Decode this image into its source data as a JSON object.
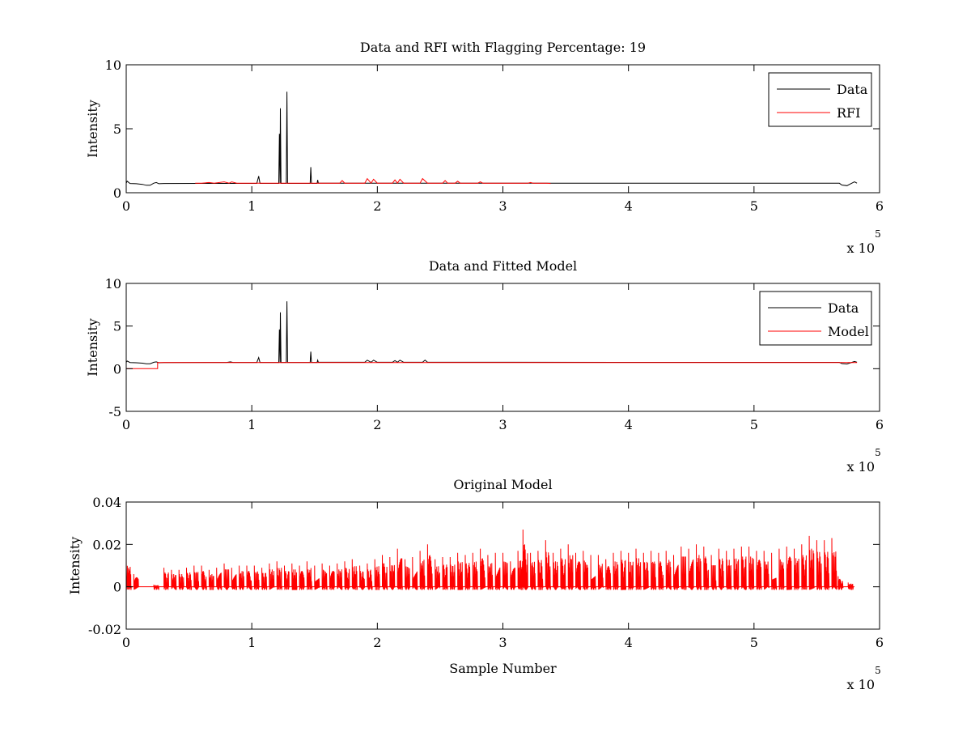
{
  "figure": {
    "background": "#ffffff"
  },
  "chart_data": [
    {
      "type": "line",
      "title": "Data and RFI with Flagging Percentage: 19",
      "xlabel": "",
      "ylabel": "Intensity",
      "xlim": [
        0,
        600000
      ],
      "ylim": [
        0,
        10
      ],
      "xticks": [
        0,
        100000,
        200000,
        300000,
        400000,
        500000,
        600000
      ],
      "xtick_labels": [
        "0",
        "1",
        "2",
        "3",
        "4",
        "5",
        "6"
      ],
      "yticks": [
        0,
        5,
        10
      ],
      "ytick_labels": [
        "0",
        "5",
        "10"
      ],
      "x_exponent": {
        "base": "x 10",
        "power": "5"
      },
      "grid": false,
      "legend": {
        "position": "top-right",
        "entries": [
          "Data",
          "RFI"
        ]
      },
      "series": [
        {
          "name": "Data",
          "color": "#000000",
          "baseline": 0.75,
          "points": [
            [
              0,
              0.75
            ],
            [
              800,
              0.9
            ],
            [
              3000,
              0.72
            ],
            [
              8000,
              0.7
            ],
            [
              13000,
              0.65
            ],
            [
              16000,
              0.58
            ],
            [
              19000,
              0.58
            ],
            [
              22000,
              0.75
            ],
            [
              24000,
              0.8
            ],
            [
              26000,
              0.7
            ],
            [
              30000,
              0.72
            ],
            [
              60000,
              0.73
            ],
            [
              90000,
              0.73
            ],
            [
              104000,
              0.73
            ],
            [
              105500,
              1.3
            ],
            [
              106500,
              0.73
            ],
            [
              121500,
              0.73
            ],
            [
              122000,
              4.6
            ],
            [
              122500,
              0.73
            ],
            [
              122800,
              6.6
            ],
            [
              123300,
              0.73
            ],
            [
              127500,
              0.73
            ],
            [
              128000,
              7.9
            ],
            [
              128500,
              0.73
            ],
            [
              146500,
              0.73
            ],
            [
              147000,
              2.0
            ],
            [
              147500,
              0.73
            ],
            [
              152000,
              0.73
            ],
            [
              152500,
              1.0
            ],
            [
              153000,
              0.75
            ],
            [
              200000,
              0.75
            ],
            [
              300000,
              0.75
            ],
            [
              400000,
              0.74
            ],
            [
              500000,
              0.74
            ],
            [
              568000,
              0.74
            ],
            [
              570000,
              0.6
            ],
            [
              574000,
              0.55
            ],
            [
              577000,
              0.7
            ],
            [
              580000,
              0.85
            ],
            [
              582000,
              0.75
            ]
          ]
        },
        {
          "name": "RFI",
          "color": "#ff0000",
          "baseline": 0.75,
          "points": [
            [
              55000,
              0.75
            ],
            [
              60000,
              0.75
            ],
            [
              66000,
              0.8
            ],
            [
              70000,
              0.75
            ],
            [
              78000,
              0.85
            ],
            [
              82000,
              0.75
            ],
            [
              84000,
              0.85
            ],
            [
              88000,
              0.75
            ],
            [
              170000,
              0.75
            ],
            [
              172000,
              0.95
            ],
            [
              174000,
              0.75
            ],
            [
              190000,
              0.75
            ],
            [
              192000,
              1.1
            ],
            [
              195000,
              0.75
            ],
            [
              197000,
              1.05
            ],
            [
              200000,
              0.75
            ],
            [
              212000,
              0.75
            ],
            [
              214000,
              1.0
            ],
            [
              216000,
              0.75
            ],
            [
              218000,
              1.05
            ],
            [
              221000,
              0.75
            ],
            [
              234000,
              0.75
            ],
            [
              236000,
              1.1
            ],
            [
              240000,
              0.75
            ],
            [
              252000,
              0.75
            ],
            [
              254000,
              0.95
            ],
            [
              256000,
              0.75
            ],
            [
              262000,
              0.75
            ],
            [
              264000,
              0.9
            ],
            [
              266000,
              0.75
            ],
            [
              280000,
              0.75
            ],
            [
              282000,
              0.85
            ],
            [
              284000,
              0.75
            ],
            [
              300000,
              0.75
            ],
            [
              320000,
              0.75
            ],
            [
              322000,
              0.8
            ],
            [
              324000,
              0.75
            ],
            [
              335000,
              0.75
            ],
            [
              338000,
              0.72
            ]
          ]
        }
      ]
    },
    {
      "type": "line",
      "title": "Data and Fitted Model",
      "xlabel": "",
      "ylabel": "Intensity",
      "xlim": [
        0,
        600000
      ],
      "ylim": [
        -5,
        10
      ],
      "xticks": [
        0,
        100000,
        200000,
        300000,
        400000,
        500000,
        600000
      ],
      "xtick_labels": [
        "0",
        "1",
        "2",
        "3",
        "4",
        "5",
        "6"
      ],
      "yticks": [
        -5,
        0,
        5,
        10
      ],
      "ytick_labels": [
        "-5",
        "0",
        "5",
        "10"
      ],
      "x_exponent": {
        "base": "x 10",
        "power": "5"
      },
      "grid": false,
      "legend": {
        "position": "top-right",
        "entries": [
          "Data",
          "Model"
        ]
      },
      "series": [
        {
          "name": "Data",
          "color": "#000000",
          "points": [
            [
              0,
              0.75
            ],
            [
              800,
              0.9
            ],
            [
              3000,
              0.72
            ],
            [
              8000,
              0.7
            ],
            [
              13000,
              0.65
            ],
            [
              16000,
              0.58
            ],
            [
              19000,
              0.58
            ],
            [
              22000,
              0.75
            ],
            [
              24000,
              0.8
            ],
            [
              26000,
              0.7
            ],
            [
              30000,
              0.72
            ],
            [
              80000,
              0.73
            ],
            [
              83000,
              0.8
            ],
            [
              85000,
              0.73
            ],
            [
              104000,
              0.73
            ],
            [
              105500,
              1.3
            ],
            [
              106500,
              0.73
            ],
            [
              121500,
              0.73
            ],
            [
              122000,
              4.6
            ],
            [
              122500,
              0.73
            ],
            [
              122800,
              6.6
            ],
            [
              123300,
              0.73
            ],
            [
              127500,
              0.73
            ],
            [
              128000,
              7.9
            ],
            [
              128500,
              0.73
            ],
            [
              146500,
              0.73
            ],
            [
              147000,
              2.0
            ],
            [
              147500,
              0.73
            ],
            [
              152000,
              0.73
            ],
            [
              152500,
              1.0
            ],
            [
              153000,
              0.75
            ],
            [
              190000,
              0.75
            ],
            [
              192000,
              1.0
            ],
            [
              195000,
              0.75
            ],
            [
              197000,
              1.0
            ],
            [
              200000,
              0.75
            ],
            [
              212000,
              0.75
            ],
            [
              214000,
              0.95
            ],
            [
              216000,
              0.75
            ],
            [
              218000,
              1.0
            ],
            [
              221000,
              0.75
            ],
            [
              236000,
              0.75
            ],
            [
              238000,
              1.0
            ],
            [
              240000,
              0.75
            ],
            [
              300000,
              0.75
            ],
            [
              400000,
              0.74
            ],
            [
              500000,
              0.74
            ],
            [
              568000,
              0.74
            ],
            [
              570000,
              0.6
            ],
            [
              574000,
              0.55
            ],
            [
              577000,
              0.7
            ],
            [
              580000,
              0.85
            ],
            [
              582000,
              0.75
            ]
          ]
        },
        {
          "name": "Model",
          "color": "#ff0000",
          "points": [
            [
              0,
              0.0
            ],
            [
              25000,
              0.0
            ],
            [
              25000,
              0.72
            ],
            [
              582000,
              0.72
            ]
          ]
        }
      ]
    },
    {
      "type": "line",
      "title": "Original Model",
      "xlabel": "Sample Number",
      "ylabel": "Intensity",
      "xlim": [
        0,
        600000
      ],
      "ylim": [
        -0.02,
        0.04
      ],
      "xticks": [
        0,
        100000,
        200000,
        300000,
        400000,
        500000,
        600000
      ],
      "xtick_labels": [
        "0",
        "1",
        "2",
        "3",
        "4",
        "5",
        "6"
      ],
      "yticks": [
        -0.02,
        0,
        0.02,
        0.04
      ],
      "ytick_labels": [
        "-0.02",
        "0",
        "0.02",
        "0.04"
      ],
      "x_exponent": {
        "base": "x 10",
        "power": "5"
      },
      "grid": false,
      "legend": null,
      "series": [
        {
          "name": "",
          "color": "#ff0000",
          "bursts": [
            [
              0,
              0.014
            ],
            [
              6000,
              0.006
            ],
            [
              22000,
              0.001
            ],
            [
              30000,
              0.009
            ],
            [
              36000,
              0.008
            ],
            [
              42000,
              0.008
            ],
            [
              48000,
              0.009
            ],
            [
              54000,
              0.01
            ],
            [
              60000,
              0.01
            ],
            [
              66000,
              0.008
            ],
            [
              72000,
              0.009
            ],
            [
              78000,
              0.011
            ],
            [
              84000,
              0.009
            ],
            [
              90000,
              0.01
            ],
            [
              96000,
              0.01
            ],
            [
              102000,
              0.01
            ],
            [
              108000,
              0.009
            ],
            [
              114000,
              0.011
            ],
            [
              120000,
              0.012
            ],
            [
              126000,
              0.01
            ],
            [
              132000,
              0.011
            ],
            [
              138000,
              0.01
            ],
            [
              144000,
              0.012
            ],
            [
              150000,
              0.01
            ],
            [
              156000,
              0.011
            ],
            [
              162000,
              0.01
            ],
            [
              168000,
              0.011
            ],
            [
              174000,
              0.012
            ],
            [
              180000,
              0.013
            ],
            [
              186000,
              0.01
            ],
            [
              192000,
              0.011
            ],
            [
              198000,
              0.013
            ],
            [
              204000,
              0.015
            ],
            [
              210000,
              0.014
            ],
            [
              216000,
              0.018
            ],
            [
              222000,
              0.013
            ],
            [
              228000,
              0.014
            ],
            [
              234000,
              0.017
            ],
            [
              240000,
              0.02
            ],
            [
              246000,
              0.013
            ],
            [
              252000,
              0.014
            ],
            [
              258000,
              0.014
            ],
            [
              264000,
              0.016
            ],
            [
              270000,
              0.015
            ],
            [
              276000,
              0.016
            ],
            [
              282000,
              0.018
            ],
            [
              288000,
              0.015
            ],
            [
              294000,
              0.016
            ],
            [
              300000,
              0.016
            ],
            [
              306000,
              0.012
            ],
            [
              312000,
              0.017
            ],
            [
              316000,
              0.027
            ],
            [
              322000,
              0.016
            ],
            [
              328000,
              0.017
            ],
            [
              334000,
              0.022
            ],
            [
              340000,
              0.016
            ],
            [
              346000,
              0.018
            ],
            [
              352000,
              0.02
            ],
            [
              358000,
              0.016
            ],
            [
              364000,
              0.017
            ],
            [
              370000,
              0.015
            ],
            [
              376000,
              0.015
            ],
            [
              382000,
              0.013
            ],
            [
              388000,
              0.016
            ],
            [
              394000,
              0.017
            ],
            [
              400000,
              0.016
            ],
            [
              406000,
              0.018
            ],
            [
              412000,
              0.016
            ],
            [
              418000,
              0.017
            ],
            [
              424000,
              0.016
            ],
            [
              430000,
              0.017
            ],
            [
              436000,
              0.015
            ],
            [
              442000,
              0.019
            ],
            [
              448000,
              0.018
            ],
            [
              454000,
              0.02
            ],
            [
              460000,
              0.019
            ],
            [
              466000,
              0.015
            ],
            [
              472000,
              0.018
            ],
            [
              478000,
              0.017
            ],
            [
              484000,
              0.018
            ],
            [
              490000,
              0.019
            ],
            [
              496000,
              0.019
            ],
            [
              502000,
              0.017
            ],
            [
              508000,
              0.017
            ],
            [
              514000,
              0.016
            ],
            [
              520000,
              0.018
            ],
            [
              526000,
              0.019
            ],
            [
              532000,
              0.018
            ],
            [
              538000,
              0.02
            ],
            [
              544000,
              0.024
            ],
            [
              550000,
              0.022
            ],
            [
              556000,
              0.022
            ],
            [
              562000,
              0.023
            ],
            [
              567000,
              0.005
            ],
            [
              575000,
              0.002
            ]
          ]
        }
      ]
    }
  ]
}
